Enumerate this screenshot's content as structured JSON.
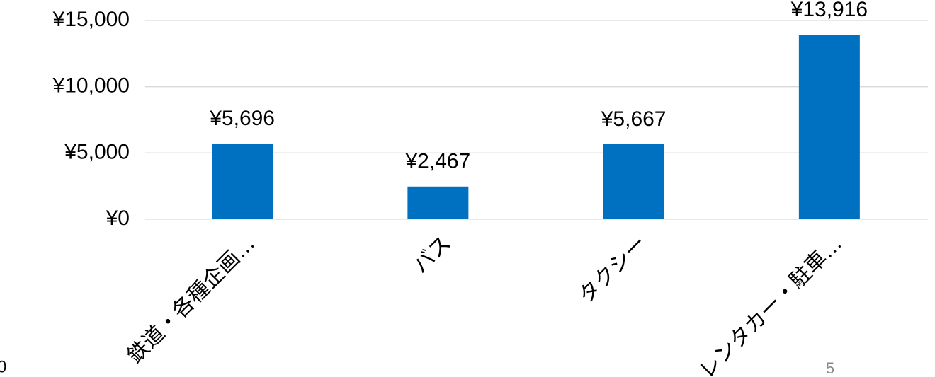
{
  "chart_data": {
    "type": "bar",
    "categories": [
      "鉄道・各種企画…",
      "バス",
      "タクシー",
      "レンタカー・駐車…"
    ],
    "values": [
      5696,
      2467,
      5667,
      13916
    ],
    "value_labels": [
      "¥5,696",
      "¥2,467",
      "¥5,667",
      "¥13,916"
    ],
    "color": "#0070c0",
    "ylim": [
      0,
      15000
    ],
    "yticks": [
      {
        "value": 0,
        "label": "¥0"
      },
      {
        "value": 5000,
        "label": "¥5,000"
      },
      {
        "value": 10000,
        "label": "¥10,000"
      },
      {
        "value": 15000,
        "label": "¥15,000"
      }
    ],
    "grid": true
  },
  "footer": {
    "left": "0",
    "page_number": "5"
  }
}
